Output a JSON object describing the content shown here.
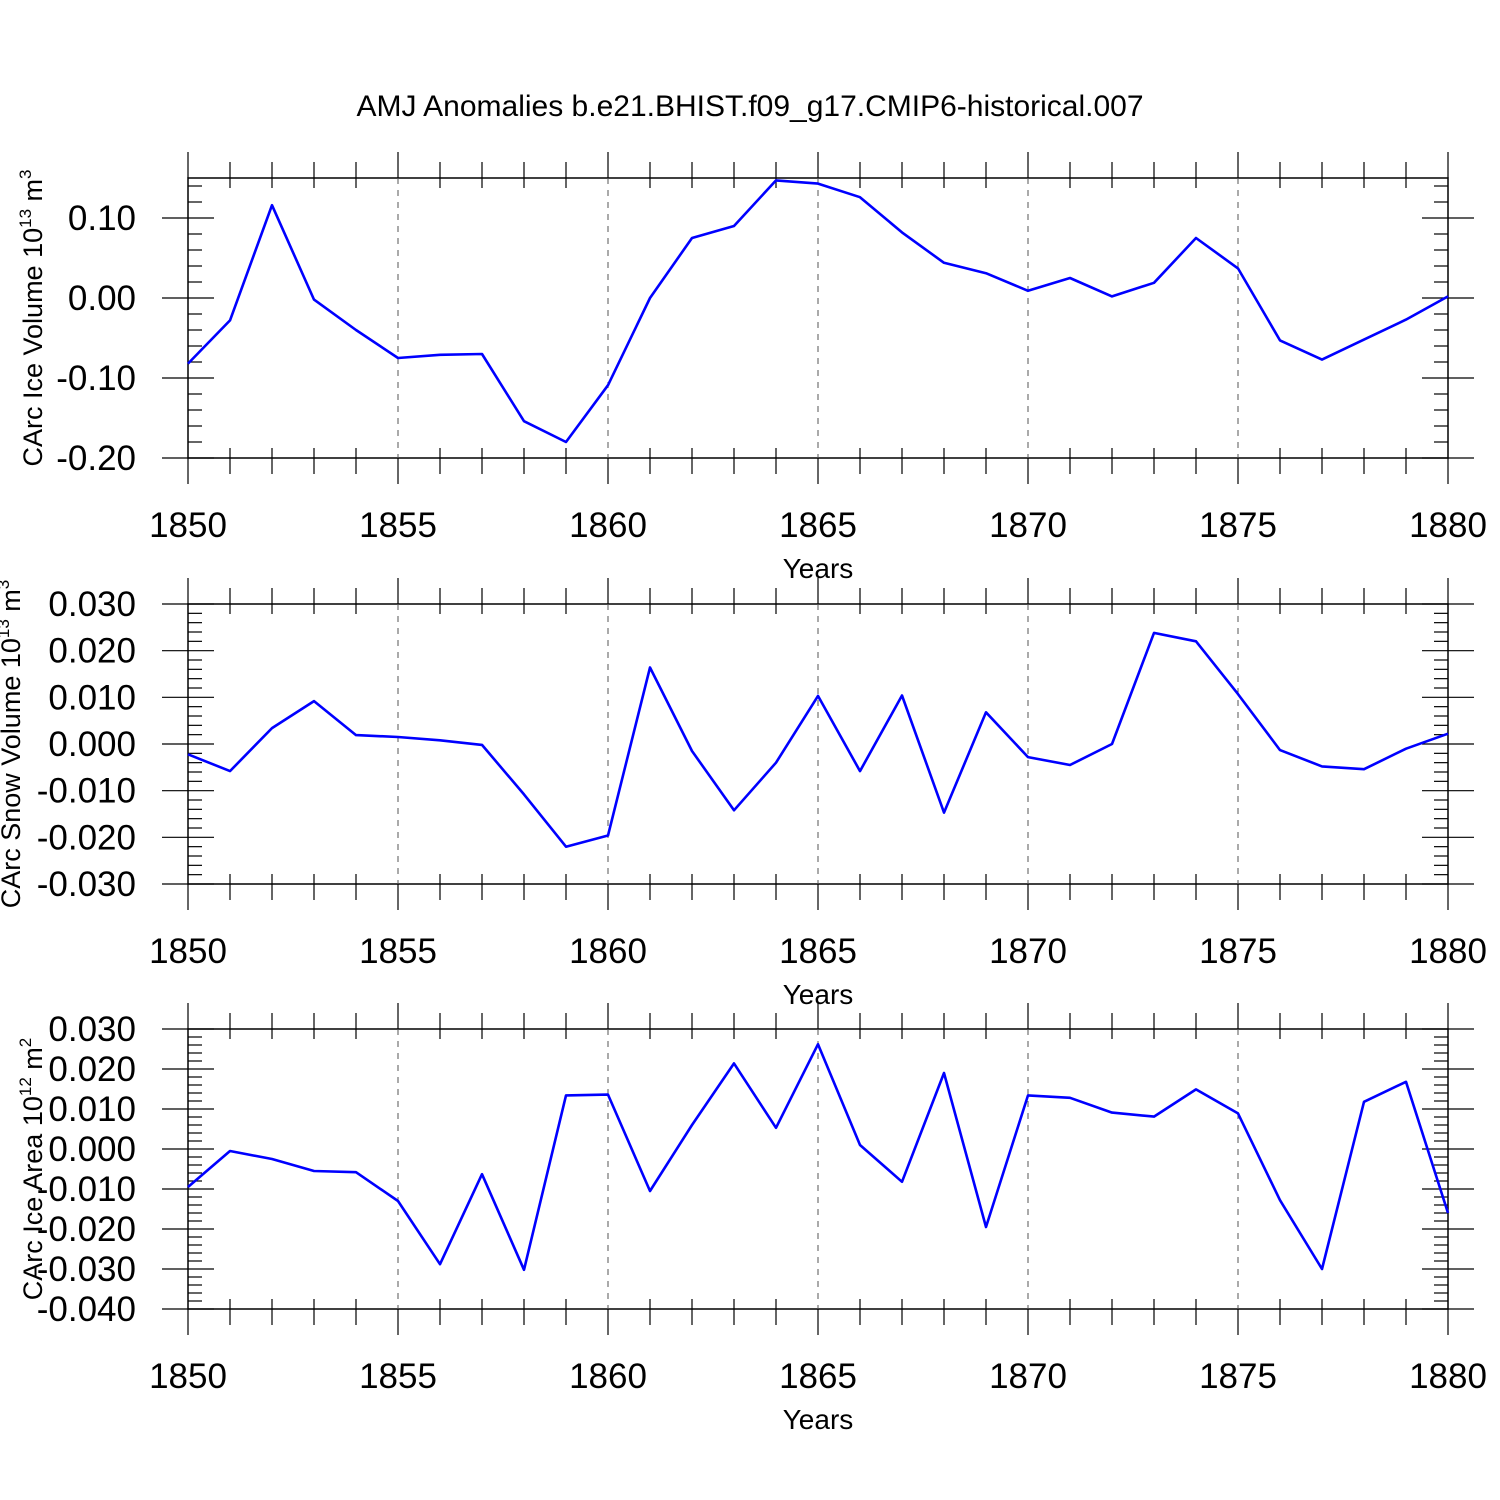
{
  "title": "AMJ Anomalies b.e21.BHIST.f09_g17.CMIP6-historical.007",
  "chart_data": [
    {
      "type": "line",
      "ylabel": {
        "main": "CArc Ice Volume 10",
        "exp": "13",
        "unit": " m",
        "unit_exp": "3"
      },
      "xlabel": "Years",
      "xlim": [
        1850,
        1880
      ],
      "ylim": [
        -0.2,
        0.15
      ],
      "x_ticks": [
        "1850",
        "1855",
        "1860",
        "1865",
        "1870",
        "1875",
        "1880"
      ],
      "y_ticks": [
        {
          "value": 0.1,
          "label": "0.10"
        },
        {
          "value": 0.0,
          "label": "0.00"
        },
        {
          "value": -0.1,
          "label": "-0.10"
        },
        {
          "value": -0.2,
          "label": "-0.20"
        }
      ],
      "series": [
        {
          "name": "CArc Ice Volume",
          "color": "#0000ff",
          "x": [
            1850,
            1851,
            1852,
            1853,
            1854,
            1855,
            1856,
            1857,
            1858,
            1859,
            1860,
            1861,
            1862,
            1863,
            1864,
            1865,
            1866,
            1867,
            1868,
            1869,
            1870,
            1871,
            1872,
            1873,
            1874,
            1875,
            1876,
            1877,
            1878,
            1879,
            1880
          ],
          "values": [
            -0.082,
            -0.028,
            0.116,
            -0.002,
            -0.04,
            -0.075,
            -0.071,
            -0.07,
            -0.154,
            -0.18,
            -0.109,
            0.0,
            0.075,
            0.09,
            0.147,
            0.143,
            0.126,
            0.082,
            0.044,
            0.031,
            0.009,
            0.025,
            0.002,
            0.019,
            0.075,
            0.037,
            -0.053,
            -0.077,
            -0.052,
            -0.027,
            0.002
          ]
        }
      ]
    },
    {
      "type": "line",
      "ylabel": {
        "main": "CArc Snow Volume 10",
        "exp": "13",
        "unit": " m",
        "unit_exp": "3"
      },
      "xlabel": "Years",
      "xlim": [
        1850,
        1880
      ],
      "ylim": [
        -0.03,
        0.03
      ],
      "x_ticks": [
        "1850",
        "1855",
        "1860",
        "1865",
        "1870",
        "1875",
        "1880"
      ],
      "y_ticks": [
        {
          "value": 0.03,
          "label": "0.030"
        },
        {
          "value": 0.02,
          "label": "0.020"
        },
        {
          "value": 0.01,
          "label": "0.010"
        },
        {
          "value": 0.0,
          "label": "0.000"
        },
        {
          "value": -0.01,
          "label": "-0.010"
        },
        {
          "value": -0.02,
          "label": "-0.020"
        },
        {
          "value": -0.03,
          "label": "-0.030"
        }
      ],
      "series": [
        {
          "name": "CArc Snow Volume",
          "color": "#0000ff",
          "x": [
            1850,
            1851,
            1852,
            1853,
            1854,
            1855,
            1856,
            1857,
            1858,
            1859,
            1860,
            1861,
            1862,
            1863,
            1864,
            1865,
            1866,
            1867,
            1868,
            1869,
            1870,
            1871,
            1872,
            1873,
            1874,
            1875,
            1876,
            1877,
            1878,
            1879,
            1880
          ],
          "values": [
            -0.0022,
            -0.0058,
            0.0034,
            0.0092,
            0.0019,
            0.0015,
            0.0008,
            -0.0002,
            -0.0108,
            -0.022,
            -0.0196,
            0.0164,
            -0.0015,
            -0.0142,
            -0.004,
            0.0103,
            -0.0058,
            0.0104,
            -0.0147,
            0.0068,
            -0.0028,
            -0.0045,
            0.0,
            0.0238,
            0.022,
            0.0107,
            -0.0013,
            -0.0048,
            -0.0054,
            -0.001,
            0.0022
          ]
        }
      ]
    },
    {
      "type": "line",
      "ylabel": {
        "main": "CArc Ice Area 10",
        "exp": "12",
        "unit": " m",
        "unit_exp": "2"
      },
      "xlabel": "Years",
      "xlim": [
        1850,
        1880
      ],
      "ylim": [
        -0.04,
        0.03
      ],
      "x_ticks": [
        "1850",
        "1855",
        "1860",
        "1865",
        "1870",
        "1875",
        "1880"
      ],
      "y_ticks": [
        {
          "value": 0.03,
          "label": "0.030"
        },
        {
          "value": 0.02,
          "label": "0.020"
        },
        {
          "value": 0.01,
          "label": "0.010"
        },
        {
          "value": 0.0,
          "label": "0.000"
        },
        {
          "value": -0.01,
          "label": "-0.010"
        },
        {
          "value": -0.02,
          "label": "-0.020"
        },
        {
          "value": -0.03,
          "label": "-0.030"
        },
        {
          "value": -0.04,
          "label": "-0.040"
        }
      ],
      "series": [
        {
          "name": "CArc Ice Area",
          "color": "#0000ff",
          "x": [
            1850,
            1851,
            1852,
            1853,
            1854,
            1855,
            1856,
            1857,
            1858,
            1859,
            1860,
            1861,
            1862,
            1863,
            1864,
            1865,
            1866,
            1867,
            1868,
            1869,
            1870,
            1871,
            1872,
            1873,
            1874,
            1875,
            1876,
            1877,
            1878,
            1879,
            1880
          ],
          "values": [
            -0.0095,
            -0.0005,
            -0.0025,
            -0.0055,
            -0.0058,
            -0.013,
            -0.0288,
            -0.0063,
            -0.0302,
            0.0134,
            0.0136,
            -0.0105,
            0.006,
            0.0214,
            0.0053,
            0.0262,
            0.001,
            -0.0082,
            0.019,
            -0.0195,
            0.0134,
            0.0128,
            0.0091,
            0.0081,
            0.0149,
            0.0089,
            -0.0128,
            -0.03,
            0.0118,
            0.0168,
            -0.016
          ]
        }
      ]
    }
  ]
}
